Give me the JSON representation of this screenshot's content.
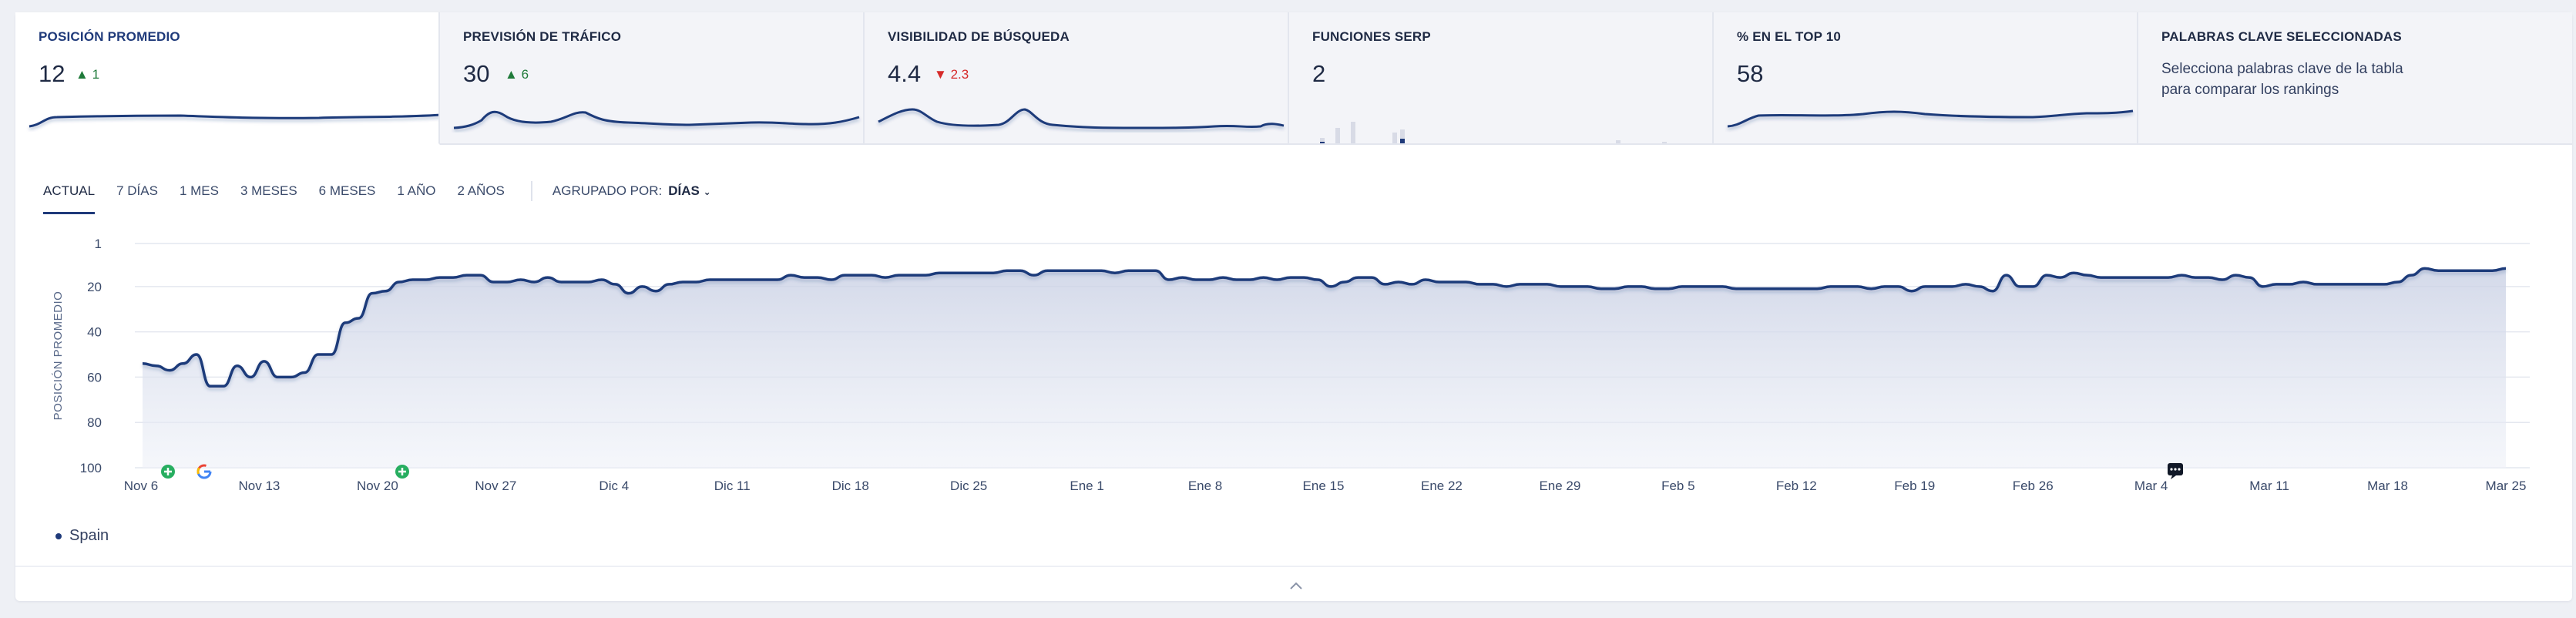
{
  "cards": [
    {
      "title": "POSICIÓN PROMEDIO",
      "value": "12",
      "delta": "1",
      "delta_dir": "up"
    },
    {
      "title": "PREVISIÓN DE TRÁFICO",
      "value": "30",
      "delta": "6",
      "delta_dir": "up"
    },
    {
      "title": "VISIBILIDAD DE BÚSQUEDA",
      "value": "4.4",
      "delta": "2.3",
      "delta_dir": "down"
    },
    {
      "title": "FUNCIONES SERP",
      "value": "2",
      "delta": "",
      "delta_dir": ""
    },
    {
      "title": "% EN EL TOP 10",
      "value": "58",
      "delta": "",
      "delta_dir": ""
    },
    {
      "title": "PALABRAS CLAVE SELECCIONADAS",
      "description": "Selecciona palabras clave de la tabla para comparar los rankings"
    }
  ],
  "ranges": [
    "ACTUAL",
    "7 DÍAS",
    "1 MES",
    "3 MESES",
    "6 MESES",
    "1 AÑO",
    "2 AÑOS"
  ],
  "active_range": "ACTUAL",
  "grouping": {
    "label": "AGRUPADO POR:",
    "value": "DÍAS"
  },
  "legend": {
    "series": "Spain"
  },
  "colors": {
    "line": "#1f3a7a",
    "accent": "#1f3a7a",
    "up": "#1f7a3a",
    "down": "#d62a2a",
    "marker_green": "#27ae60"
  },
  "icons": {
    "google": "google-icon",
    "plus": "plus-circle-icon",
    "comment": "comment-icon",
    "collapse": "chevron-up-icon"
  },
  "chart_data": {
    "type": "area",
    "ylabel": "POSICIÓN PROMEDIO",
    "yticks": [
      1,
      20,
      40,
      60,
      80,
      100
    ],
    "ylim": [
      1,
      100
    ],
    "y_inverted": true,
    "xticks": [
      "Nov 6",
      "Nov 13",
      "Nov 20",
      "Nov 27",
      "Dic 4",
      "Dic 11",
      "Dic 18",
      "Dic 25",
      "Ene 1",
      "Ene 8",
      "Ene 15",
      "Ene 22",
      "Ene 29",
      "Feb 5",
      "Feb 12",
      "Feb 19",
      "Feb 26",
      "Mar 4",
      "Mar 11",
      "Mar 18",
      "Mar 25"
    ],
    "grid": true,
    "series": [
      {
        "name": "Spain",
        "start": "Nov 6",
        "values": [
          54,
          55,
          57,
          54,
          50,
          64,
          64,
          55,
          60,
          53,
          60,
          60,
          58,
          50,
          50,
          36,
          34,
          23,
          22,
          18,
          17,
          17,
          16,
          16,
          15,
          15,
          18,
          18,
          17,
          18,
          16,
          18,
          18,
          18,
          17,
          19,
          23,
          20,
          22,
          19,
          18,
          18,
          17,
          17,
          17,
          17,
          17,
          17,
          15,
          16,
          16,
          17,
          15,
          15,
          15,
          16,
          15,
          15,
          15,
          14,
          14,
          14,
          14,
          14,
          13,
          13,
          15,
          13,
          13,
          13,
          13,
          13,
          14,
          13,
          13,
          13,
          17,
          16,
          17,
          17,
          16,
          17,
          17,
          16,
          17,
          16,
          16,
          17,
          20,
          18,
          16,
          16,
          19,
          18,
          19,
          17,
          18,
          18,
          18,
          19,
          19,
          20,
          19,
          19,
          19,
          20,
          20,
          20,
          21,
          21,
          20,
          20,
          21,
          21,
          20,
          20,
          20,
          20,
          21,
          21,
          21,
          21,
          21,
          21,
          21,
          20,
          20,
          20,
          21,
          20,
          20,
          22,
          20,
          20,
          20,
          19,
          20,
          22,
          15,
          20,
          20,
          15,
          16,
          14,
          15,
          16,
          16,
          16,
          16,
          16,
          16,
          15,
          16,
          16,
          17,
          15,
          16,
          20,
          19,
          19,
          18,
          19,
          19,
          19,
          19,
          19,
          19,
          18,
          15,
          12,
          13,
          13,
          13,
          13,
          13,
          12
        ]
      }
    ],
    "markers": [
      {
        "date": "Nov 8",
        "icon": "plus-circle-icon"
      },
      {
        "date": "Nov 9",
        "icon": "google-icon"
      },
      {
        "date": "Nov 21",
        "icon": "plus-circle-icon"
      },
      {
        "date": "Mar 5",
        "icon": "comment-icon"
      }
    ]
  }
}
